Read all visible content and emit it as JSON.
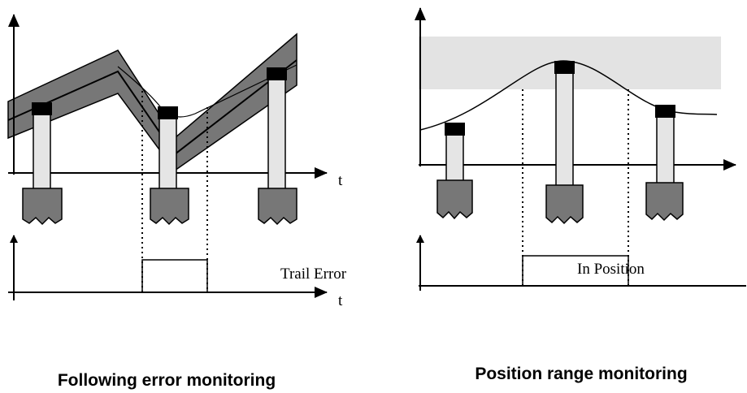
{
  "left": {
    "axis_label_top": "t",
    "axis_label_bottom": "t",
    "signal_label": "Trail Error",
    "caption": "Following error monitoring"
  },
  "right": {
    "signal_label": "In Position",
    "caption": "Position range monitoring"
  }
}
